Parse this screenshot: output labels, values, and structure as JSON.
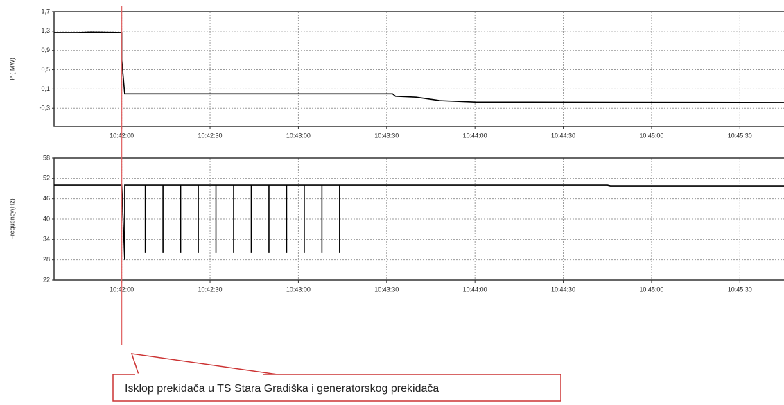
{
  "chart_data": [
    {
      "type": "line",
      "ylabel": "P ( MW)",
      "color": "#000000",
      "grid": true,
      "x": [
        "10:41:37",
        "10:41:45",
        "10:41:50",
        "10:42:00",
        "10:42:00",
        "10:42:01",
        "10:43:32",
        "10:43:33",
        "10:43:40",
        "10:43:48",
        "10:44:00",
        "10:45:45"
      ],
      "values": [
        1.27,
        1.27,
        1.28,
        1.27,
        0.7,
        0.0,
        0.0,
        -0.05,
        -0.07,
        -0.14,
        -0.17,
        -0.18
      ],
      "xlim": [
        "10:41:37",
        "10:45:45"
      ],
      "xticks": [
        "10:42:00",
        "10:42:30",
        "10:43:00",
        "10:43:30",
        "10:44:00",
        "10:44:30",
        "10:45:00",
        "10:45:30"
      ],
      "ylim": [
        -0.67,
        1.7
      ],
      "yticks": [
        {
          "value": 1.7,
          "label": "1,7"
        },
        {
          "value": 1.3,
          "label": "1,3"
        },
        {
          "value": 0.9,
          "label": "0,9"
        },
        {
          "value": 0.5,
          "label": "0,5"
        },
        {
          "value": 0.1,
          "label": "0,1"
        },
        {
          "value": -0.3,
          "label": "-0,3"
        }
      ]
    },
    {
      "type": "line",
      "ylabel": "Frequency(Hz)",
      "color": "#000000",
      "grid": true,
      "x": [
        "10:41:37",
        "10:42:00",
        "10:42:01",
        "10:42:01",
        "10:42:08",
        "10:42:08",
        "10:42:08",
        "10:42:14",
        "10:42:14",
        "10:42:14",
        "10:42:20",
        "10:42:20",
        "10:42:20",
        "10:42:26",
        "10:42:26",
        "10:42:26",
        "10:42:32",
        "10:42:32",
        "10:42:32",
        "10:42:38",
        "10:42:38",
        "10:42:38",
        "10:42:44",
        "10:42:44",
        "10:42:44",
        "10:42:50",
        "10:42:50",
        "10:42:50",
        "10:42:56",
        "10:42:56",
        "10:42:56",
        "10:43:02",
        "10:43:02",
        "10:43:02",
        "10:43:08",
        "10:43:08",
        "10:43:08",
        "10:43:14",
        "10:43:14",
        "10:43:14",
        "10:44:45",
        "10:44:46",
        "10:45:45"
      ],
      "values": [
        50,
        50,
        28,
        50,
        50,
        30,
        50,
        50,
        30,
        50,
        50,
        30,
        50,
        50,
        30,
        50,
        50,
        30,
        50,
        50,
        30,
        50,
        50,
        30,
        50,
        50,
        30,
        50,
        50,
        30,
        50,
        50,
        30,
        50,
        50,
        30,
        50,
        50,
        30,
        50,
        50,
        49.8,
        49.8
      ],
      "xlim": [
        "10:41:37",
        "10:45:45"
      ],
      "xticks": [
        "10:42:00",
        "10:42:30",
        "10:43:00",
        "10:43:30",
        "10:44:00",
        "10:44:30",
        "10:45:00",
        "10:45:30"
      ],
      "ylim": [
        22,
        58
      ],
      "yticks": [
        58,
        52,
        46,
        40,
        34,
        28,
        22
      ]
    }
  ],
  "annotation": {
    "x": "10:42:00",
    "text": "Isklop prekidača u TS Stara Gradiška i generatorskog prekidača",
    "color": "#e06060"
  }
}
